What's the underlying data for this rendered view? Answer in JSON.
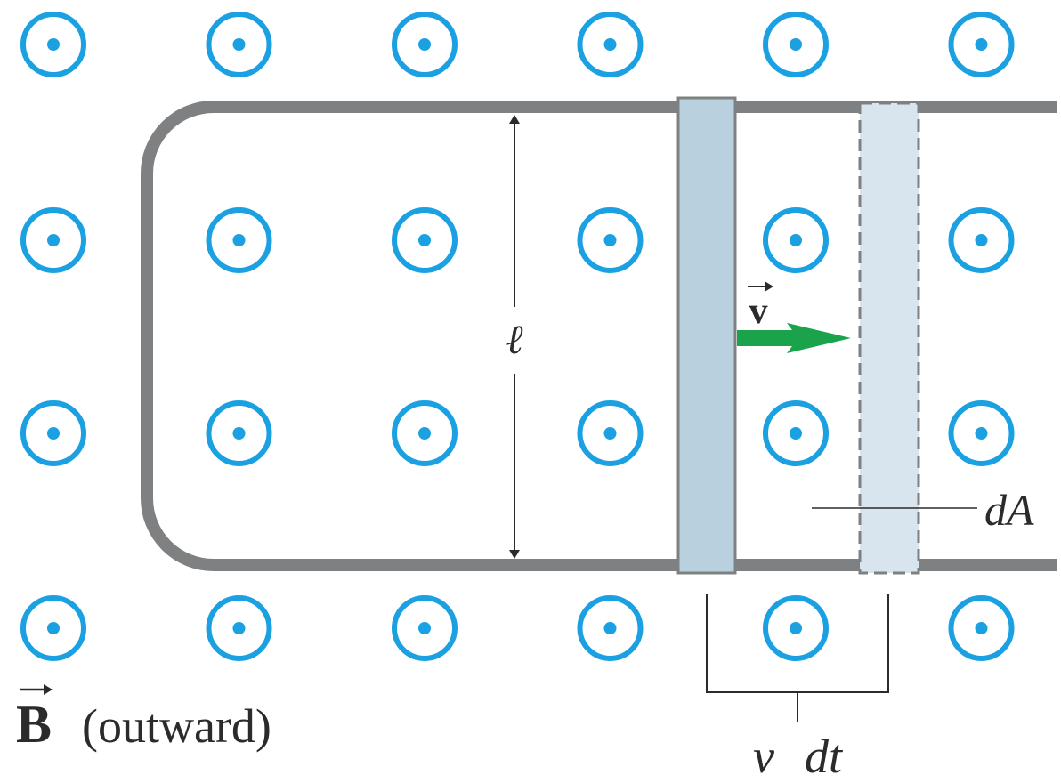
{
  "colors": {
    "field_symbol": "#1BA1E2",
    "rails": "#7F8082",
    "rod": "#B9D0DE",
    "rod_ghost": "#D9E5EE",
    "velocity_arrow": "#1AA34A",
    "text": "#2B2B2B"
  },
  "icons": {
    "field_symbol": "field-out-of-page-icon",
    "velocity": "right-arrow-icon"
  },
  "field_grid": {
    "rows": 4,
    "columns": 6
  },
  "labels": {
    "length": "ℓ",
    "velocity_symbol": "v",
    "area_element": "dA",
    "displacement_v": "v",
    "displacement_dt": "dt",
    "field_symbol": "B",
    "field_direction": "(outward)"
  }
}
